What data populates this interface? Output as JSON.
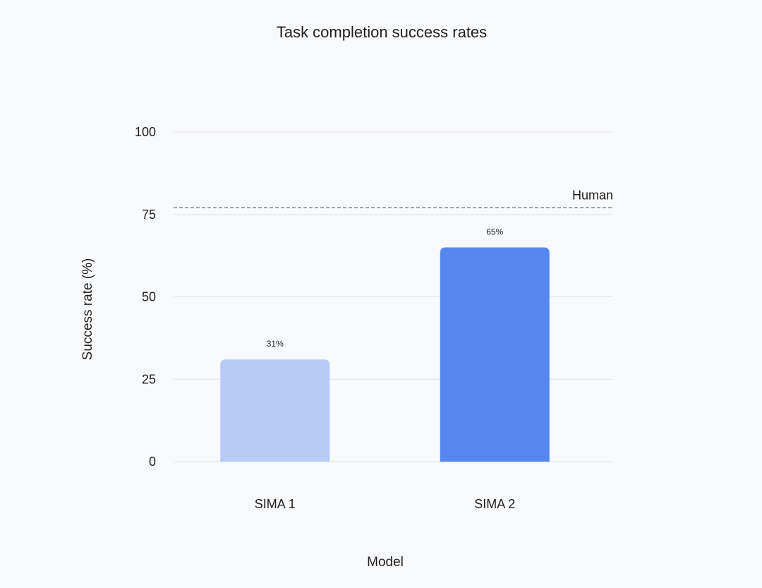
{
  "chart_data": {
    "type": "bar",
    "title": "Task completion success rates",
    "xlabel": "Model",
    "ylabel": "Success rate (%)",
    "ylim": [
      0,
      100
    ],
    "yticks": [
      0,
      25,
      50,
      75,
      100
    ],
    "grid": true,
    "categories": [
      "SIMA 1",
      "SIMA 2"
    ],
    "values": [
      31,
      65
    ],
    "data_labels": [
      "31%",
      "65%"
    ],
    "bar_colors": [
      "#b8cbf7",
      "#5687ef"
    ],
    "reference_line": {
      "label": "Human",
      "value": 77
    }
  }
}
